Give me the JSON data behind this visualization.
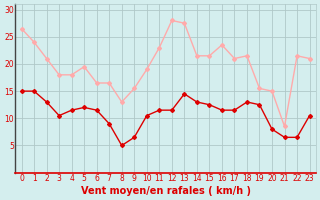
{
  "hours": [
    0,
    1,
    2,
    3,
    4,
    5,
    6,
    7,
    8,
    9,
    10,
    11,
    12,
    13,
    14,
    15,
    16,
    17,
    18,
    19,
    20,
    21,
    22,
    23
  ],
  "wind_avg": [
    15,
    15,
    13,
    10.5,
    11.5,
    12,
    11.5,
    9,
    5,
    6.5,
    10.5,
    11.5,
    11.5,
    14.5,
    13,
    12.5,
    11.5,
    11.5,
    13,
    12.5,
    8,
    6.5,
    6.5,
    10.5
  ],
  "wind_gust": [
    26.5,
    24,
    21,
    18,
    18,
    19.5,
    16.5,
    16.5,
    13,
    15.5,
    19,
    23,
    28,
    27.5,
    21.5,
    21.5,
    23.5,
    21,
    21.5,
    15.5,
    15,
    8.5,
    21.5,
    21
  ],
  "color_avg": "#dd0000",
  "color_gust": "#ffaaaa",
  "bg_color": "#d4eeee",
  "grid_color": "#b0c8c8",
  "xlabel": "Vent moyen/en rafales ( km/h )",
  "ylim": [
    0,
    31
  ],
  "yticks": [
    5,
    10,
    15,
    20,
    25,
    30
  ],
  "marker": "D",
  "markersize": 2,
  "linewidth": 1.0,
  "xlabel_color": "#dd0000",
  "tick_color": "#dd0000",
  "tick_fontsize": 5.5,
  "xlabel_fontsize": 7.0
}
